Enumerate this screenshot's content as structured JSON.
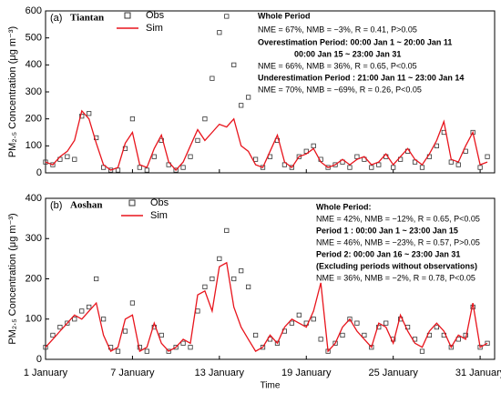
{
  "chart_data": [
    {
      "type": "line",
      "panel": "(a)",
      "site": "Tiantan",
      "ylabel": "PM₂.₅ Concentration (μg m⁻³)",
      "x": [
        1,
        1.5,
        2,
        2.5,
        3,
        3.5,
        4,
        4.5,
        5,
        5.5,
        6,
        6.5,
        7,
        7.5,
        8,
        8.5,
        9,
        9.5,
        10,
        10.5,
        11,
        11.5,
        12,
        12.5,
        13,
        13.5,
        14,
        14.5,
        15,
        15.5,
        16,
        16.5,
        17,
        17.5,
        18,
        18.5,
        19,
        19.5,
        20,
        20.5,
        21,
        21.5,
        22,
        22.5,
        23,
        23.5,
        24,
        24.5,
        25,
        25.5,
        26,
        26.5,
        27,
        27.5,
        28,
        28.5,
        29,
        29.5,
        30,
        30.5,
        31,
        31.5
      ],
      "series": [
        {
          "name": "Obs",
          "color": "#333333",
          "marker": "square",
          "values": [
            40,
            30,
            50,
            60,
            50,
            210,
            220,
            130,
            20,
            10,
            10,
            90,
            200,
            20,
            10,
            60,
            120,
            30,
            10,
            20,
            60,
            120,
            200,
            350,
            520,
            580,
            400,
            250,
            280,
            50,
            20,
            60,
            120,
            30,
            20,
            60,
            80,
            100,
            50,
            20,
            30,
            40,
            20,
            60,
            50,
            20,
            30,
            60,
            20,
            50,
            80,
            40,
            20,
            60,
            100,
            150,
            40,
            30,
            80,
            150,
            20,
            60
          ]
        },
        {
          "name": "Sim",
          "color": "#e8141c",
          "marker": "line",
          "values": [
            40,
            30,
            60,
            80,
            120,
            230,
            200,
            110,
            30,
            10,
            20,
            110,
            150,
            30,
            20,
            90,
            140,
            40,
            10,
            40,
            100,
            160,
            120,
            150,
            180,
            170,
            200,
            100,
            80,
            30,
            20,
            80,
            140,
            40,
            20,
            60,
            70,
            90,
            40,
            20,
            30,
            50,
            30,
            50,
            60,
            30,
            40,
            70,
            30,
            60,
            90,
            50,
            30,
            70,
            120,
            190,
            50,
            40,
            100,
            150,
            30,
            40
          ]
        }
      ],
      "xlim": [
        1,
        32
      ],
      "xticks": [
        1,
        7,
        13,
        19,
        25,
        31
      ],
      "ylim": [
        0,
        600
      ],
      "yticks": [
        0,
        100,
        200,
        300,
        400,
        500,
        600
      ],
      "annotations": [
        {
          "text": "Whole Period",
          "bold": true
        },
        {
          "text": "NME = 67%, NMB = −3%, R = 0.41, P>0.05",
          "bold": false
        },
        {
          "text": "Overestimation Period:   00:00 Jan 1 ~ 20:00  Jan 11",
          "bold": true
        },
        {
          "text": "00:00 Jan 15 ~ 23:00 Jan 31",
          "bold": true
        },
        {
          "text": "NME = 66%, NMB = 36%, R =  0.65, P<0.05",
          "bold": false
        },
        {
          "text": "Underestimation Period :  21:00 Jan 11 ~ 23:00 Jan 14",
          "bold": true
        },
        {
          "text": "NME = 70%, NMB = −69%, R =  0.26, P<0.05",
          "bold": false
        }
      ]
    },
    {
      "type": "line",
      "panel": "(b)",
      "site": "Aoshan",
      "ylabel": "PM₂.₅ Concentration (μg m⁻³)",
      "xlabel": "Time",
      "x": [
        1,
        1.5,
        2,
        2.5,
        3,
        3.5,
        4,
        4.5,
        5,
        5.5,
        6,
        6.5,
        7,
        7.5,
        8,
        8.5,
        9,
        9.5,
        10,
        10.5,
        11,
        11.5,
        12,
        12.5,
        13,
        13.5,
        14,
        14.5,
        15,
        15.5,
        16,
        16.5,
        17,
        17.5,
        18,
        18.5,
        19,
        19.5,
        20,
        20.5,
        21,
        21.5,
        22,
        22.5,
        23,
        23.5,
        24,
        24.5,
        25,
        25.5,
        26,
        26.5,
        27,
        27.5,
        28,
        28.5,
        29,
        29.5,
        30,
        30.5,
        31,
        31.5
      ],
      "series": [
        {
          "name": "Obs",
          "color": "#333333",
          "marker": "square",
          "values": [
            30,
            60,
            80,
            90,
            100,
            120,
            130,
            200,
            100,
            30,
            20,
            70,
            140,
            30,
            20,
            80,
            60,
            20,
            30,
            40,
            30,
            120,
            180,
            200,
            250,
            320,
            200,
            220,
            180,
            60,
            30,
            50,
            40,
            70,
            90,
            110,
            90,
            100,
            50,
            20,
            40,
            60,
            100,
            90,
            60,
            30,
            80,
            90,
            50,
            100,
            80,
            50,
            20,
            60,
            80,
            60,
            30,
            50,
            60,
            130,
            30,
            40
          ]
        },
        {
          "name": "Sim",
          "color": "#e8141c",
          "marker": "line",
          "values": [
            30,
            50,
            70,
            90,
            110,
            100,
            120,
            140,
            60,
            20,
            30,
            100,
            110,
            20,
            30,
            90,
            40,
            20,
            30,
            50,
            40,
            160,
            170,
            120,
            230,
            240,
            130,
            80,
            50,
            20,
            30,
            60,
            40,
            80,
            100,
            90,
            80,
            120,
            190,
            20,
            40,
            80,
            100,
            70,
            50,
            30,
            90,
            80,
            40,
            110,
            70,
            40,
            30,
            70,
            90,
            70,
            30,
            60,
            50,
            140,
            30,
            40
          ]
        }
      ],
      "xlim": [
        1,
        32
      ],
      "xticks": [
        {
          "value": 1,
          "label": "1 January"
        },
        {
          "value": 7,
          "label": "7 January"
        },
        {
          "value": 13,
          "label": "13 January"
        },
        {
          "value": 19,
          "label": "19 January"
        },
        {
          "value": 25,
          "label": "25 January"
        },
        {
          "value": 31,
          "label": "31 January"
        }
      ],
      "ylim": [
        0,
        400
      ],
      "yticks": [
        0,
        100,
        200,
        300,
        400
      ],
      "annotations": [
        {
          "text": "Whole Period:",
          "bold": true
        },
        {
          "text": "NME = 42%, NMB = −12%, R = 0.65, P<0.05",
          "bold": false
        },
        {
          "text": "Period 1 :  00:00 Jan 1 ~ 23:00 Jan 15",
          "bold": true
        },
        {
          "text": "NME = 46%, NMB = −23%, R = 0.57, P>0.05",
          "bold": false
        },
        {
          "text": "Period 2:  00:00 Jan 16 ~ 23:00  Jan 31",
          "bold": true
        },
        {
          "text": "(Excluding periods without observations)",
          "bold": true
        },
        {
          "text": "NME = 36%, NMB = −2%, R = 0.78, P<0.05",
          "bold": false
        }
      ]
    }
  ]
}
